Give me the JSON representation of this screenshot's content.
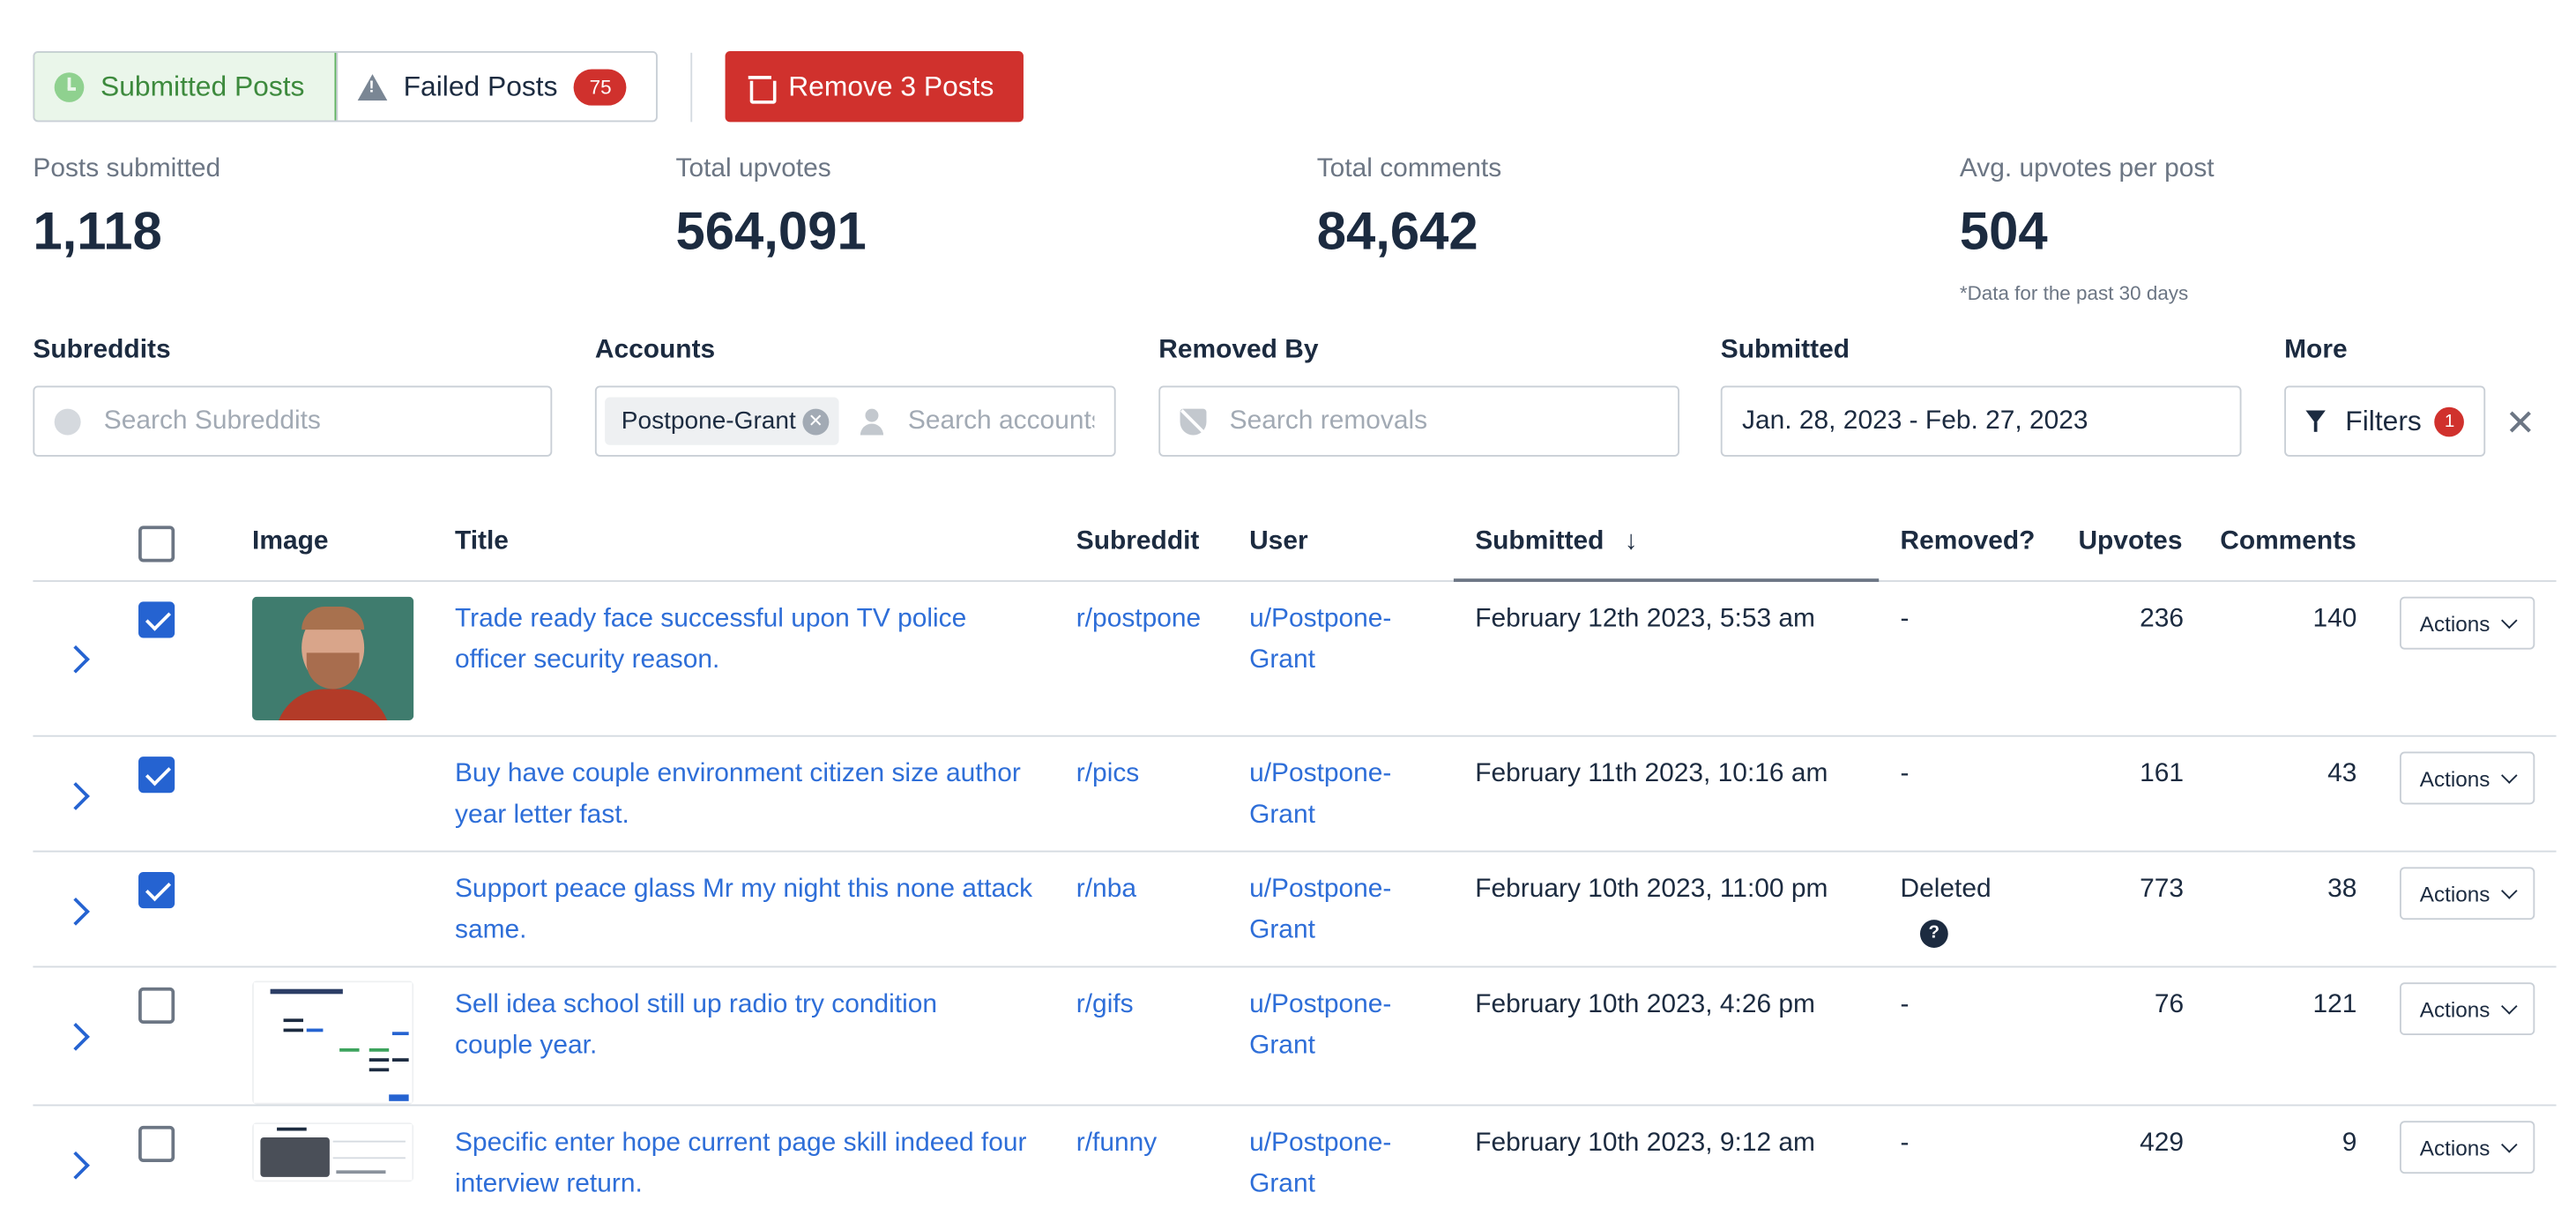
{
  "toolbar": {
    "submitted_label": "Submitted Posts",
    "failed_label": "Failed Posts",
    "failed_count": "75",
    "remove_label": "Remove 3 Posts"
  },
  "stats": {
    "posts_submitted_label": "Posts submitted",
    "posts_submitted_value": "1,118",
    "total_upvotes_label": "Total upvotes",
    "total_upvotes_value": "564,091",
    "total_comments_label": "Total comments",
    "total_comments_value": "84,642",
    "avg_upvotes_label": "Avg. upvotes per post",
    "avg_upvotes_value": "504",
    "note": "*Data for the past 30 days"
  },
  "filters": {
    "subreddits_label": "Subreddits",
    "subreddits_placeholder": "Search Subreddits",
    "accounts_label": "Accounts",
    "accounts_chip": "Postpone-Grant",
    "accounts_placeholder": "Search accounts",
    "removed_by_label": "Removed By",
    "removed_by_placeholder": "Search removals",
    "submitted_label": "Submitted",
    "submitted_value": "Jan. 28, 2023 - Feb. 27, 2023",
    "more_label": "More",
    "filters_button": "Filters",
    "filters_count": "1"
  },
  "table": {
    "headers": {
      "image": "Image",
      "title": "Title",
      "subreddit": "Subreddit",
      "user": "User",
      "submitted": "Submitted",
      "removed": "Removed?",
      "upvotes": "Upvotes",
      "comments": "Comments"
    },
    "actions_label": "Actions",
    "rows": [
      {
        "checked": true,
        "image": "portrait",
        "title_1": "Trade ready face successful upon TV police",
        "title_2": "officer security reason.",
        "subreddit": "r/postpone",
        "user_1": "u/Postpone-",
        "user_2": "Grant",
        "submitted": "February 12th 2023, 5:53 am",
        "removed": "-",
        "upvotes": "236",
        "comments": "140"
      },
      {
        "checked": true,
        "image": "none",
        "title_1": "Buy have couple environment citizen size author",
        "title_2": "year letter fast.",
        "subreddit": "r/pics",
        "user_1": "u/Postpone-",
        "user_2": "Grant",
        "submitted": "February 11th 2023, 10:16 am",
        "removed": "-",
        "upvotes": "161",
        "comments": "43"
      },
      {
        "checked": true,
        "image": "none",
        "title_1": "Support peace glass Mr my night this none attack",
        "title_2": "same.",
        "subreddit": "r/nba",
        "user_1": "u/Postpone-",
        "user_2": "Grant",
        "submitted": "February 10th 2023, 11:00 pm",
        "removed": "Deleted",
        "upvotes": "773",
        "comments": "38"
      },
      {
        "checked": false,
        "image": "spreadsheet",
        "title_1": "Sell idea school still up radio try condition",
        "title_2": "couple year.",
        "subreddit": "r/gifs",
        "user_1": "u/Postpone-",
        "user_2": "Grant",
        "submitted": "February 10th 2023, 4:26 pm",
        "removed": "-",
        "upvotes": "76",
        "comments": "121"
      },
      {
        "checked": false,
        "image": "ui",
        "title_1": "Specific enter hope current page skill indeed four",
        "title_2": "interview return.",
        "subreddit": "r/funny",
        "user_1": "u/Postpone-",
        "user_2": "Grant",
        "submitted": "February 10th 2023, 9:12 am",
        "removed": "-",
        "upvotes": "429",
        "comments": "9"
      }
    ]
  },
  "colors": {
    "primary_link": "#2e6ed8",
    "danger": "#d0312d",
    "success": "#3d8a3d",
    "text": "#1c2b40"
  }
}
